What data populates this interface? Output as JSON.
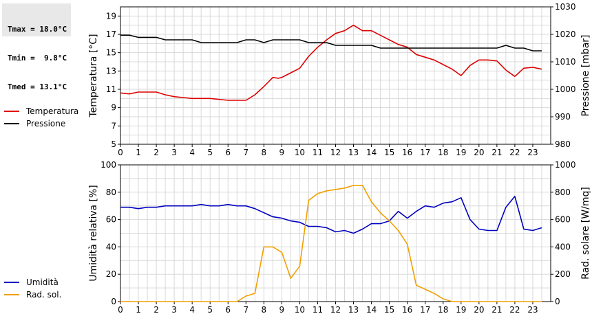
{
  "stats": {
    "tmax": "Tmax = 18.0°C",
    "tmin": "Tmin =  9.8°C",
    "tmed": "Tmed = 13.1°C"
  },
  "colors": {
    "temperature": "#dd0000",
    "pressure": "#000000",
    "humidity": "#0000c0",
    "solar": "#f0a000",
    "grid": "#d8d8d8"
  },
  "chart_data": [
    {
      "type": "line",
      "xlim": [
        0,
        24
      ],
      "xticks": [
        "0",
        "1",
        "2",
        "3",
        "4",
        "5",
        "6",
        "7",
        "8",
        "9",
        "10",
        "11",
        "12",
        "13",
        "14",
        "15",
        "16",
        "17",
        "18",
        "19",
        "20",
        "21",
        "22",
        "23"
      ],
      "ylabel": "Temperatura [°C]",
      "ylim": [
        5,
        20
      ],
      "yticks": [
        "5",
        "7",
        "9",
        "11",
        "13",
        "15",
        "17",
        "19"
      ],
      "y2label": "Pressione [mbar]",
      "y2lim": [
        980,
        1030
      ],
      "y2ticks": [
        "980",
        "990",
        "1000",
        "1010",
        "1020",
        "1030"
      ],
      "grid": true,
      "legend": "left",
      "series": [
        {
          "name": "Temperatura",
          "axis": "left",
          "x": [
            0,
            0.5,
            1,
            1.5,
            2,
            2.5,
            3,
            3.5,
            4,
            4.5,
            5,
            5.5,
            6,
            6.5,
            7,
            7.5,
            8,
            8.5,
            8.8,
            9,
            9.5,
            10,
            10.5,
            11,
            11.5,
            12,
            12.5,
            13,
            13.5,
            14,
            14.5,
            15,
            15.5,
            16,
            16.5,
            17,
            17.5,
            18,
            18.5,
            19,
            19.5,
            20,
            20.5,
            21,
            21.5,
            22,
            22.5,
            23,
            23.5
          ],
          "values": [
            10.6,
            10.5,
            10.7,
            10.7,
            10.7,
            10.4,
            10.2,
            10.1,
            10.0,
            10.0,
            10.0,
            9.9,
            9.8,
            9.8,
            9.8,
            10.4,
            11.3,
            12.3,
            12.2,
            12.3,
            12.8,
            13.3,
            14.6,
            15.6,
            16.4,
            17.1,
            17.4,
            18.0,
            17.4,
            17.4,
            16.9,
            16.4,
            15.9,
            15.6,
            14.8,
            14.5,
            14.2,
            13.7,
            13.2,
            12.5,
            13.6,
            14.2,
            14.2,
            14.1,
            13.1,
            12.4,
            13.3,
            13.4,
            13.2
          ]
        },
        {
          "name": "Pressione",
          "axis": "right",
          "x": [
            0,
            0.5,
            1,
            1.5,
            2,
            2.5,
            3,
            3.5,
            4,
            4.5,
            5,
            5.5,
            6,
            6.5,
            7,
            7.5,
            8,
            8.5,
            9,
            9.5,
            10,
            10.5,
            11,
            11.5,
            12,
            12.5,
            13,
            13.5,
            14,
            14.5,
            15,
            15.5,
            16,
            16.5,
            17,
            17.5,
            18,
            18.5,
            19,
            19.5,
            20,
            20.5,
            21,
            21.5,
            22,
            22.5,
            23,
            23.5
          ],
          "values": [
            1019.7,
            1019.7,
            1018.9,
            1018.9,
            1018.9,
            1018.0,
            1018.0,
            1018.0,
            1018.0,
            1017.0,
            1017.0,
            1017.0,
            1017.0,
            1017.0,
            1018.0,
            1018.0,
            1017.0,
            1018.0,
            1018.0,
            1018.0,
            1018.0,
            1017.0,
            1017.0,
            1017.0,
            1016.0,
            1016.0,
            1016.0,
            1016.0,
            1016.0,
            1015.0,
            1015.0,
            1015.0,
            1015.0,
            1015.0,
            1015.0,
            1015.0,
            1015.0,
            1015.0,
            1015.0,
            1015.0,
            1015.0,
            1015.0,
            1015.0,
            1016.0,
            1015.0,
            1015.0,
            1014.0,
            1014.0
          ]
        }
      ]
    },
    {
      "type": "line",
      "xlim": [
        0,
        24
      ],
      "xticks": [
        "0",
        "1",
        "2",
        "3",
        "4",
        "5",
        "6",
        "7",
        "8",
        "9",
        "10",
        "11",
        "12",
        "13",
        "14",
        "15",
        "16",
        "17",
        "18",
        "19",
        "20",
        "21",
        "22",
        "23"
      ],
      "ylabel": "Umidità relativa [%]",
      "ylim": [
        0,
        100
      ],
      "yticks": [
        "0",
        "20",
        "40",
        "60",
        "80",
        "100"
      ],
      "y2label": "Rad. solare [W/mq]",
      "y2lim": [
        0,
        1000
      ],
      "y2ticks": [
        "0",
        "200",
        "400",
        "600",
        "800",
        "1000"
      ],
      "grid": true,
      "legend": "left",
      "series": [
        {
          "name": "Umidità",
          "axis": "left",
          "x": [
            0,
            0.5,
            1,
            1.5,
            2,
            2.5,
            3,
            3.5,
            4,
            4.5,
            5,
            5.5,
            6,
            6.5,
            7,
            7.5,
            8,
            8.5,
            9,
            9.5,
            10,
            10.5,
            11,
            11.5,
            12,
            12.5,
            13,
            13.5,
            14,
            14.5,
            15,
            15.5,
            16,
            16.5,
            17,
            17.5,
            18,
            18.5,
            19,
            19.5,
            20,
            20.5,
            21,
            21.5,
            22,
            22.5,
            23,
            23.5
          ],
          "values": [
            69,
            69,
            68,
            69,
            69,
            70,
            70,
            70,
            70,
            71,
            70,
            70,
            71,
            70,
            70,
            68,
            65,
            62,
            61,
            59,
            58,
            55,
            55,
            54,
            51,
            52,
            50,
            53,
            57,
            57,
            59,
            66,
            61,
            66,
            70,
            69,
            72,
            73,
            76,
            60,
            53,
            52,
            52,
            69,
            77,
            53,
            52,
            54
          ]
        },
        {
          "name": "Rad. sol.",
          "axis": "right",
          "x": [
            0,
            1,
            2,
            3,
            4,
            5,
            6,
            6.5,
            7,
            7.5,
            8,
            8.5,
            9,
            9.5,
            10,
            10.5,
            11,
            11.5,
            12,
            12.5,
            13,
            13.5,
            14,
            14.5,
            15,
            15.5,
            16,
            16.5,
            17,
            17.5,
            18,
            18.5,
            19,
            20,
            21,
            22,
            23,
            23.5
          ],
          "values": [
            0,
            0,
            0,
            0,
            0,
            0,
            0,
            0,
            40,
            60,
            400,
            400,
            360,
            170,
            260,
            740,
            790,
            810,
            820,
            830,
            850,
            850,
            730,
            650,
            590,
            520,
            420,
            120,
            90,
            60,
            20,
            0,
            0,
            0,
            0,
            0,
            0,
            0
          ]
        }
      ]
    }
  ]
}
